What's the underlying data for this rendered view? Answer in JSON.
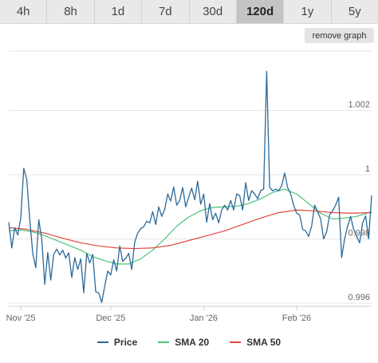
{
  "tabs": [
    {
      "label": "4h",
      "active": false
    },
    {
      "label": "8h",
      "active": false
    },
    {
      "label": "1d",
      "active": false
    },
    {
      "label": "7d",
      "active": false
    },
    {
      "label": "30d",
      "active": false
    },
    {
      "label": "120d",
      "active": true
    },
    {
      "label": "1y",
      "active": false
    },
    {
      "label": "5y",
      "active": false
    }
  ],
  "remove_graph_label": "remove graph",
  "chart_data": {
    "type": "line",
    "title": "",
    "xlabel": "",
    "ylabel": "",
    "x_range": [
      "2025-10-28",
      "2026-02-26"
    ],
    "ylim": [
      0.9959,
      1.0039
    ],
    "y_ticks": [
      0.996,
      0.998,
      1,
      1.002
    ],
    "y_tick_labels": [
      "0.996",
      "0.998",
      "1",
      "1.002"
    ],
    "x_ticks": [
      {
        "label": "Nov '25",
        "date": "2025-11-01"
      },
      {
        "label": "Dec '25",
        "date": "2025-12-01"
      },
      {
        "label": "Jan '26",
        "date": "2026-01-01"
      },
      {
        "label": "Feb '26",
        "date": "2026-02-01"
      }
    ],
    "grid": true,
    "legend_position": "bottom",
    "series": [
      {
        "name": "Price",
        "color": "#2c6a9a",
        "points": [
          [
            "2025-10-28",
            0.99852
          ],
          [
            "2025-10-29",
            0.99772
          ],
          [
            "2025-10-30",
            0.99835
          ],
          [
            "2025-10-31",
            0.99812
          ],
          [
            "2025-11-01",
            0.99865
          ],
          [
            "2025-11-02",
            1.0002
          ],
          [
            "2025-11-03",
            0.99985
          ],
          [
            "2025-11-04",
            0.9986
          ],
          [
            "2025-11-05",
            0.99755
          ],
          [
            "2025-11-06",
            0.9971
          ],
          [
            "2025-11-07",
            0.9986
          ],
          [
            "2025-11-08",
            0.998
          ],
          [
            "2025-11-09",
            0.99658
          ],
          [
            "2025-11-10",
            0.99758
          ],
          [
            "2025-11-11",
            0.99672
          ],
          [
            "2025-11-12",
            0.99752
          ],
          [
            "2025-11-13",
            0.99768
          ],
          [
            "2025-11-14",
            0.9975
          ],
          [
            "2025-11-15",
            0.99765
          ],
          [
            "2025-11-16",
            0.9974
          ],
          [
            "2025-11-17",
            0.99757
          ],
          [
            "2025-11-18",
            0.9968
          ],
          [
            "2025-11-19",
            0.99742
          ],
          [
            "2025-11-20",
            0.99705
          ],
          [
            "2025-11-21",
            0.99738
          ],
          [
            "2025-11-22",
            0.99632
          ],
          [
            "2025-11-23",
            0.99755
          ],
          [
            "2025-11-24",
            0.99725
          ],
          [
            "2025-11-25",
            0.99752
          ],
          [
            "2025-11-26",
            0.99635
          ],
          [
            "2025-11-27",
            0.99632
          ],
          [
            "2025-11-28",
            0.99602
          ],
          [
            "2025-11-29",
            0.99653
          ],
          [
            "2025-11-30",
            0.997
          ],
          [
            "2025-12-01",
            0.99688
          ],
          [
            "2025-12-02",
            0.99735
          ],
          [
            "2025-12-03",
            0.997
          ],
          [
            "2025-12-04",
            0.99778
          ],
          [
            "2025-12-05",
            0.9973
          ],
          [
            "2025-12-06",
            0.9974
          ],
          [
            "2025-12-07",
            0.99755
          ],
          [
            "2025-12-08",
            0.99705
          ],
          [
            "2025-12-09",
            0.9979
          ],
          [
            "2025-12-10",
            0.99818
          ],
          [
            "2025-12-11",
            0.99832
          ],
          [
            "2025-12-12",
            0.99838
          ],
          [
            "2025-12-13",
            0.99855
          ],
          [
            "2025-12-14",
            0.9985
          ],
          [
            "2025-12-15",
            0.99885
          ],
          [
            "2025-12-16",
            0.99845
          ],
          [
            "2025-12-17",
            0.999
          ],
          [
            "2025-12-18",
            0.9987
          ],
          [
            "2025-12-19",
            0.99892
          ],
          [
            "2025-12-20",
            0.9994
          ],
          [
            "2025-12-21",
            0.99918
          ],
          [
            "2025-12-22",
            0.99962
          ],
          [
            "2025-12-23",
            0.99905
          ],
          [
            "2025-12-24",
            0.9992
          ],
          [
            "2025-12-25",
            0.9996
          ],
          [
            "2025-12-26",
            0.999
          ],
          [
            "2025-12-27",
            0.9993
          ],
          [
            "2025-12-28",
            0.99958
          ],
          [
            "2025-12-29",
            0.99922
          ],
          [
            "2025-12-30",
            0.9998
          ],
          [
            "2025-12-31",
            0.99908
          ],
          [
            "2026-01-01",
            0.9994
          ],
          [
            "2026-01-02",
            0.99852
          ],
          [
            "2026-01-03",
            0.9991
          ],
          [
            "2026-01-04",
            0.9986
          ],
          [
            "2026-01-05",
            0.9988
          ],
          [
            "2026-01-06",
            0.9985
          ],
          [
            "2026-01-07",
            0.9989
          ],
          [
            "2026-01-08",
            0.99905
          ],
          [
            "2026-01-09",
            0.9989
          ],
          [
            "2026-01-10",
            0.9992
          ],
          [
            "2026-01-11",
            0.9989
          ],
          [
            "2026-01-12",
            0.9994
          ],
          [
            "2026-01-13",
            0.99935
          ],
          [
            "2026-01-14",
            0.9989
          ],
          [
            "2026-01-15",
            0.99975
          ],
          [
            "2026-01-16",
            0.9992
          ],
          [
            "2026-01-17",
            0.9995
          ],
          [
            "2026-01-18",
            0.9994
          ],
          [
            "2026-01-19",
            0.99925
          ],
          [
            "2026-01-20",
            0.9995
          ],
          [
            "2026-01-21",
            0.99955
          ],
          [
            "2026-01-22",
            1.00322
          ],
          [
            "2026-01-23",
            0.9996
          ],
          [
            "2026-01-24",
            0.9995
          ],
          [
            "2026-01-25",
            0.99955
          ],
          [
            "2026-01-26",
            0.9995
          ],
          [
            "2026-01-27",
            0.99965
          ],
          [
            "2026-01-28",
            1.00005
          ],
          [
            "2026-01-29",
            0.9996
          ],
          [
            "2026-01-30",
            0.9994
          ],
          [
            "2026-01-31",
            0.99905
          ],
          [
            "2026-02-01",
            0.9988
          ],
          [
            "2026-02-02",
            0.99875
          ],
          [
            "2026-02-03",
            0.9983
          ],
          [
            "2026-02-04",
            0.99825
          ],
          [
            "2026-02-05",
            0.99808
          ],
          [
            "2026-02-06",
            0.9984
          ],
          [
            "2026-02-07",
            0.99905
          ],
          [
            "2026-02-08",
            0.99885
          ],
          [
            "2026-02-09",
            0.99862
          ],
          [
            "2026-02-10",
            0.998
          ],
          [
            "2026-02-11",
            0.99822
          ],
          [
            "2026-02-12",
            0.99875
          ],
          [
            "2026-02-13",
            0.99888
          ],
          [
            "2026-02-14",
            0.99905
          ],
          [
            "2026-02-15",
            0.9993
          ],
          [
            "2026-02-16",
            0.99742
          ],
          [
            "2026-02-17",
            0.998
          ],
          [
            "2026-02-18",
            0.9984
          ],
          [
            "2026-02-19",
            0.9987
          ],
          [
            "2026-02-20",
            0.9983
          ],
          [
            "2026-02-21",
            0.99808
          ],
          [
            "2026-02-22",
            0.99788
          ],
          [
            "2026-02-23",
            0.9985
          ],
          [
            "2026-02-24",
            0.99872
          ],
          [
            "2026-02-25",
            0.998
          ],
          [
            "2026-02-26",
            0.99935
          ]
        ]
      },
      {
        "name": "SMA 20",
        "color": "#4cc27a",
        "points": [
          [
            "2025-10-28",
            0.99825
          ],
          [
            "2025-11-01",
            0.99828
          ],
          [
            "2025-11-05",
            0.99822
          ],
          [
            "2025-11-09",
            0.9981
          ],
          [
            "2025-11-13",
            0.99795
          ],
          [
            "2025-11-17",
            0.9978
          ],
          [
            "2025-11-21",
            0.99765
          ],
          [
            "2025-11-25",
            0.99745
          ],
          [
            "2025-11-29",
            0.99732
          ],
          [
            "2025-12-03",
            0.99722
          ],
          [
            "2025-12-07",
            0.99722
          ],
          [
            "2025-12-11",
            0.99738
          ],
          [
            "2025-12-15",
            0.99765
          ],
          [
            "2025-12-19",
            0.998
          ],
          [
            "2025-12-23",
            0.9984
          ],
          [
            "2025-12-27",
            0.99868
          ],
          [
            "2025-12-31",
            0.99888
          ],
          [
            "2026-01-04",
            0.99898
          ],
          [
            "2026-01-08",
            0.999
          ],
          [
            "2026-01-12",
            0.99902
          ],
          [
            "2026-01-16",
            0.9991
          ],
          [
            "2026-01-20",
            0.99925
          ],
          [
            "2026-01-24",
            0.99945
          ],
          [
            "2026-01-28",
            0.99955
          ],
          [
            "2026-02-01",
            0.9994
          ],
          [
            "2026-02-05",
            0.9991
          ],
          [
            "2026-02-09",
            0.9988
          ],
          [
            "2026-02-13",
            0.99862
          ],
          [
            "2026-02-17",
            0.99865
          ],
          [
            "2026-02-21",
            0.9987
          ],
          [
            "2026-02-26",
            0.99885
          ]
        ]
      },
      {
        "name": "SMA 50",
        "color": "#e0483e",
        "points": [
          [
            "2025-10-28",
            0.99835
          ],
          [
            "2025-11-03",
            0.9983
          ],
          [
            "2025-11-09",
            0.99818
          ],
          [
            "2025-11-15",
            0.99802
          ],
          [
            "2025-11-21",
            0.99788
          ],
          [
            "2025-11-27",
            0.99778
          ],
          [
            "2025-12-03",
            0.99772
          ],
          [
            "2025-12-09",
            0.9977
          ],
          [
            "2025-12-15",
            0.99772
          ],
          [
            "2025-12-21",
            0.9978
          ],
          [
            "2025-12-27",
            0.99795
          ],
          [
            "2026-01-02",
            0.9981
          ],
          [
            "2026-01-08",
            0.99825
          ],
          [
            "2026-01-14",
            0.99845
          ],
          [
            "2026-01-20",
            0.99865
          ],
          [
            "2026-01-26",
            0.99882
          ],
          [
            "2026-02-01",
            0.9989
          ],
          [
            "2026-02-07",
            0.99887
          ],
          [
            "2026-02-13",
            0.99882
          ],
          [
            "2026-02-19",
            0.9988
          ],
          [
            "2026-02-26",
            0.99882
          ]
        ]
      }
    ]
  }
}
